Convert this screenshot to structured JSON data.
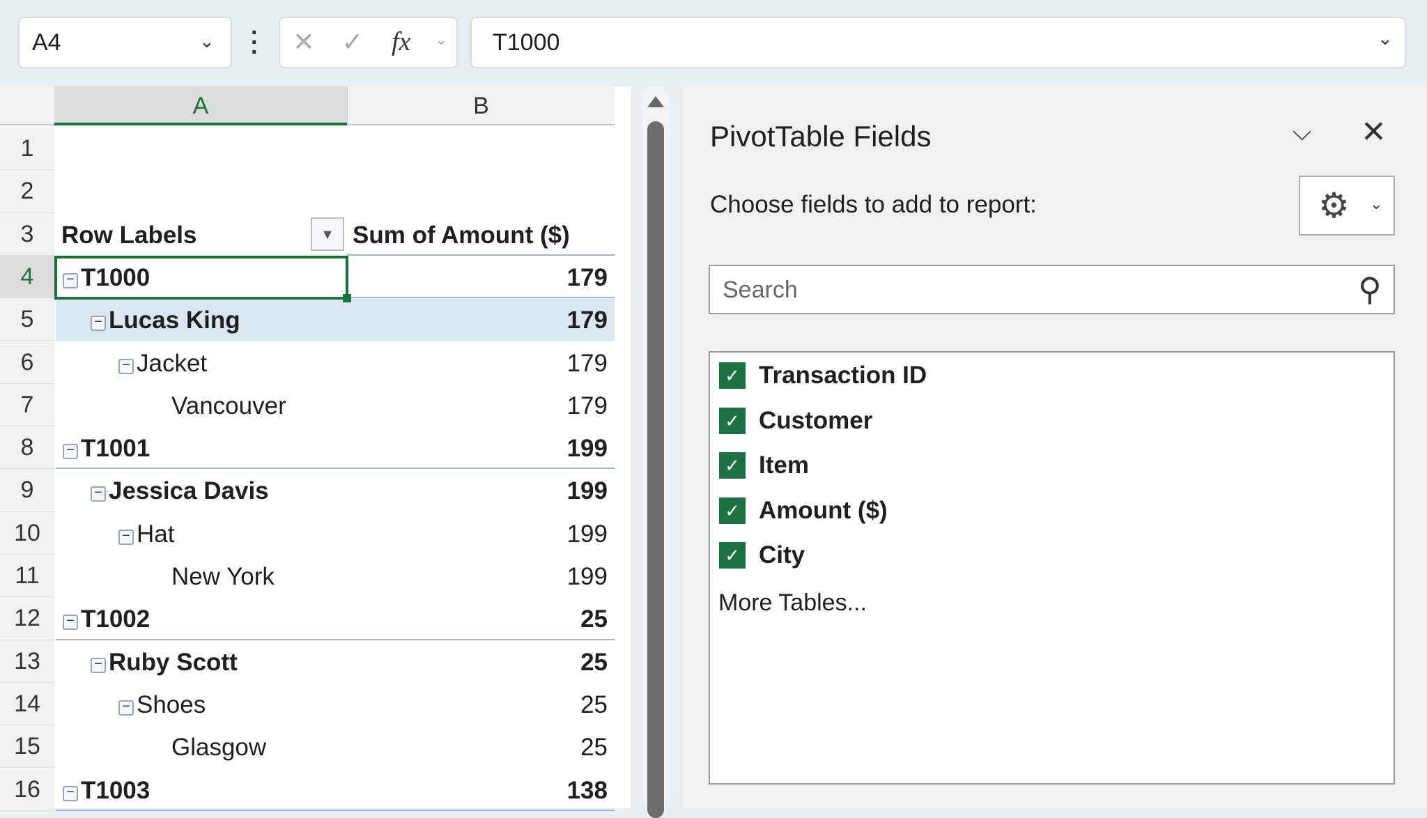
{
  "formula_bar": {
    "name_box": "A4",
    "formula": "T1000",
    "cancel_icon": "✕",
    "enter_icon": "✓",
    "fx_label": "fx"
  },
  "columns": [
    "A",
    "B"
  ],
  "pivot": {
    "header_row_label": "Row Labels",
    "header_value": "Sum of Amount ($)",
    "rows": [
      {
        "row": 1,
        "label": "",
        "value": "",
        "level": -1
      },
      {
        "row": 2,
        "label": "",
        "value": "",
        "level": -1
      },
      {
        "row": 3,
        "label": "Row Labels",
        "value": "Sum of Amount ($)",
        "level": -2
      },
      {
        "row": 4,
        "label": "T1000",
        "value": "179",
        "level": 0
      },
      {
        "row": 5,
        "label": "Lucas King",
        "value": "179",
        "level": 1
      },
      {
        "row": 6,
        "label": "Jacket",
        "value": "179",
        "level": 2
      },
      {
        "row": 7,
        "label": "Vancouver",
        "value": "179",
        "level": 3
      },
      {
        "row": 8,
        "label": "T1001",
        "value": "199",
        "level": 0
      },
      {
        "row": 9,
        "label": "Jessica Davis",
        "value": "199",
        "level": 1
      },
      {
        "row": 10,
        "label": "Hat",
        "value": "199",
        "level": 2
      },
      {
        "row": 11,
        "label": "New York",
        "value": "199",
        "level": 3
      },
      {
        "row": 12,
        "label": "T1002",
        "value": "25",
        "level": 0
      },
      {
        "row": 13,
        "label": "Ruby Scott",
        "value": "25",
        "level": 1
      },
      {
        "row": 14,
        "label": "Shoes",
        "value": "25",
        "level": 2
      },
      {
        "row": 15,
        "label": "Glasgow",
        "value": "25",
        "level": 3
      },
      {
        "row": 16,
        "label": "T1003",
        "value": "138",
        "level": 0
      }
    ]
  },
  "panel": {
    "title": "PivotTable Fields",
    "subtitle": "Choose fields to add to report:",
    "search_placeholder": "Search",
    "fields": [
      {
        "label": "Transaction ID",
        "checked": true
      },
      {
        "label": "Customer",
        "checked": true
      },
      {
        "label": "Item",
        "checked": true
      },
      {
        "label": "Amount ($)",
        "checked": true
      },
      {
        "label": "City",
        "checked": true
      }
    ],
    "more_tables": "More Tables..."
  },
  "colors": {
    "accent": "#1e6e3c",
    "pivot_header": "#dce6f1",
    "checkbox": "#1e7145"
  }
}
